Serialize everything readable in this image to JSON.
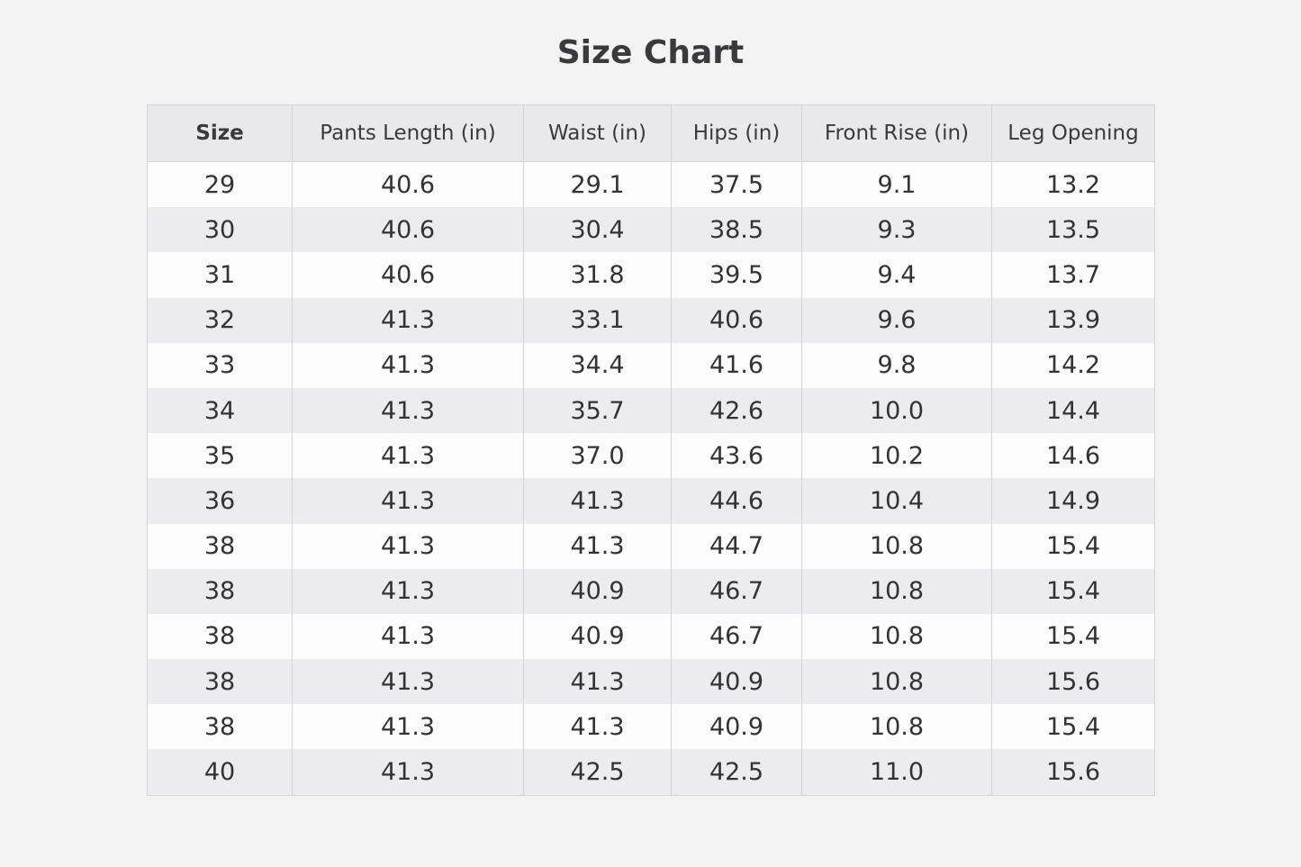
{
  "title": "Size Chart",
  "table": {
    "columns": [
      "Size",
      "Pants Length (in)",
      "Waist (in)",
      "Hips (in)",
      "Front Rise (in)",
      "Leg Opening"
    ],
    "rows": [
      [
        "29",
        "40.6",
        "29.1",
        "37.5",
        "9.1",
        "13.2"
      ],
      [
        "30",
        "40.6",
        "30.4",
        "38.5",
        "9.3",
        "13.5"
      ],
      [
        "31",
        "40.6",
        "31.8",
        "39.5",
        "9.4",
        "13.7"
      ],
      [
        "32",
        "41.3",
        "33.1",
        "40.6",
        "9.6",
        "13.9"
      ],
      [
        "33",
        "41.3",
        "34.4",
        "41.6",
        "9.8",
        "14.2"
      ],
      [
        "34",
        "41.3",
        "35.7",
        "42.6",
        "10.0",
        "14.4"
      ],
      [
        "35",
        "41.3",
        "37.0",
        "43.6",
        "10.2",
        "14.6"
      ],
      [
        "36",
        "41.3",
        "41.3",
        "44.6",
        "10.4",
        "14.9"
      ],
      [
        "38",
        "41.3",
        "41.3",
        "44.7",
        "10.8",
        "15.4"
      ],
      [
        "38",
        "41.3",
        "40.9",
        "46.7",
        "10.8",
        "15.4"
      ],
      [
        "38",
        "41.3",
        "40.9",
        "46.7",
        "10.8",
        "15.4"
      ],
      [
        "38",
        "41.3",
        "41.3",
        "40.9",
        "10.8",
        "15.6"
      ],
      [
        "38",
        "41.3",
        "41.3",
        "40.9",
        "10.8",
        "15.4"
      ],
      [
        "40",
        "41.3",
        "42.5",
        "42.5",
        "11.0",
        "15.6"
      ]
    ]
  }
}
